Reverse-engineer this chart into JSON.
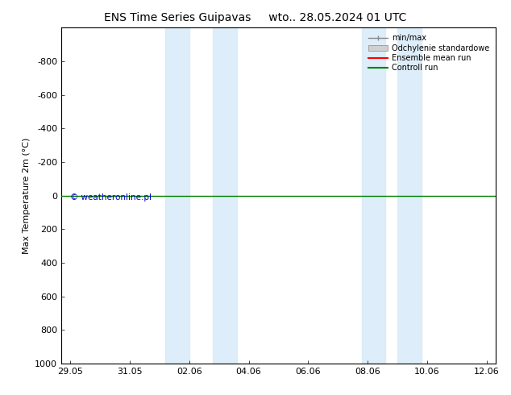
{
  "title": "ENS Time Series Guipavas",
  "title_date": "wto.. 28.05.2024 01 UTC",
  "ylabel": "Max Temperature 2m (°C)",
  "ylim_top": -1000,
  "ylim_bottom": 1000,
  "yticks": [
    -800,
    -600,
    -400,
    -200,
    0,
    200,
    400,
    600,
    800,
    1000
  ],
  "xtick_labels": [
    "29.05",
    "31.05",
    "02.06",
    "04.06",
    "06.06",
    "08.06",
    "10.06",
    "12.06"
  ],
  "xmin": 0,
  "xmax": 14,
  "blue_bands": [
    [
      3.2,
      4.0
    ],
    [
      4.8,
      5.6
    ],
    [
      9.8,
      10.6
    ],
    [
      11.0,
      11.8
    ]
  ],
  "green_line_y": 0,
  "line_color_green": "#008000",
  "line_color_red": "#ff0000",
  "band_color": "#d8eaf8",
  "band_alpha": 0.85,
  "legend_entries": [
    "min/max",
    "Odchylenie standardowe",
    "Ensemble mean run",
    "Controll run"
  ],
  "legend_colors_line": [
    "#aaaaaa",
    "#cccccc",
    "#ff0000",
    "#008000"
  ],
  "copyright_text": "© weatheronline.pl",
  "copyright_color": "#0000cc",
  "background_color": "#ffffff",
  "title_fontsize": 10,
  "axis_fontsize": 8,
  "tick_fontsize": 8
}
